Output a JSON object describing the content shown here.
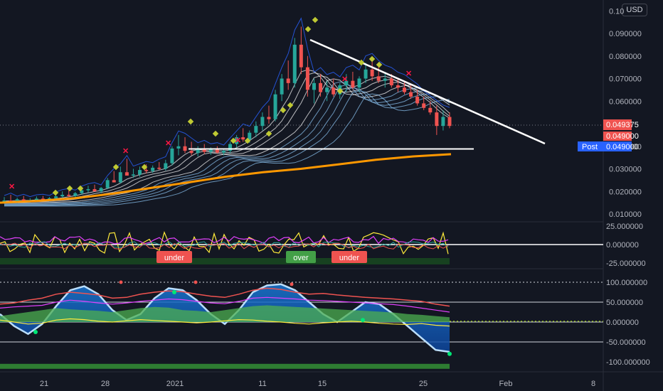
{
  "currency_button": "USD",
  "chart_data": [
    {
      "type": "candlestick",
      "panel": "price",
      "y_ticks": [
        "0.010000",
        "0.020000",
        "0.030000",
        "0.040000",
        "0.049000",
        "0.060000",
        "0.070000",
        "0.080000",
        "0.090000",
        "0.10"
      ],
      "ylim": [
        0.005,
        0.1
      ],
      "x_ticks": [
        "21",
        "28",
        "2021",
        "11",
        "15",
        "25",
        "Feb",
        "8"
      ],
      "price_badges": {
        "last": "0.049375",
        "close": "0.049000",
        "post_label": "Post",
        "post_value": "0.049000"
      },
      "colors": {
        "up": "#26a69a",
        "down": "#ef5350",
        "ma": "#ff9800",
        "trendline": "#ffffff",
        "band": "#2962ff"
      },
      "candles": [
        {
          "o": 0.0155,
          "h": 0.0175,
          "l": 0.0145,
          "c": 0.016
        },
        {
          "o": 0.016,
          "h": 0.0185,
          "l": 0.015,
          "c": 0.0158
        },
        {
          "o": 0.0158,
          "h": 0.0172,
          "l": 0.0148,
          "c": 0.0165
        },
        {
          "o": 0.0165,
          "h": 0.018,
          "l": 0.0155,
          "c": 0.0158
        },
        {
          "o": 0.0158,
          "h": 0.017,
          "l": 0.015,
          "c": 0.0162
        },
        {
          "o": 0.0162,
          "h": 0.0178,
          "l": 0.0155,
          "c": 0.0168
        },
        {
          "o": 0.0168,
          "h": 0.018,
          "l": 0.0158,
          "c": 0.0163
        },
        {
          "o": 0.0163,
          "h": 0.0175,
          "l": 0.0156,
          "c": 0.017
        },
        {
          "o": 0.017,
          "h": 0.019,
          "l": 0.0162,
          "c": 0.0178
        },
        {
          "o": 0.0178,
          "h": 0.02,
          "l": 0.017,
          "c": 0.0185
        },
        {
          "o": 0.0185,
          "h": 0.0205,
          "l": 0.0175,
          "c": 0.018
        },
        {
          "o": 0.018,
          "h": 0.0198,
          "l": 0.0172,
          "c": 0.0192
        },
        {
          "o": 0.0192,
          "h": 0.0215,
          "l": 0.0185,
          "c": 0.0205
        },
        {
          "o": 0.0205,
          "h": 0.0225,
          "l": 0.0195,
          "c": 0.021
        },
        {
          "o": 0.021,
          "h": 0.023,
          "l": 0.02,
          "c": 0.02
        },
        {
          "o": 0.02,
          "h": 0.022,
          "l": 0.0192,
          "c": 0.0215
        },
        {
          "o": 0.0215,
          "h": 0.026,
          "l": 0.021,
          "c": 0.025
        },
        {
          "o": 0.025,
          "h": 0.029,
          "l": 0.024,
          "c": 0.024
        },
        {
          "o": 0.024,
          "h": 0.031,
          "l": 0.0235,
          "c": 0.0285
        },
        {
          "o": 0.0285,
          "h": 0.0345,
          "l": 0.0275,
          "c": 0.027
        },
        {
          "o": 0.027,
          "h": 0.03,
          "l": 0.026,
          "c": 0.0275
        },
        {
          "o": 0.0275,
          "h": 0.031,
          "l": 0.0265,
          "c": 0.0295
        },
        {
          "o": 0.0295,
          "h": 0.032,
          "l": 0.028,
          "c": 0.029
        },
        {
          "o": 0.029,
          "h": 0.0315,
          "l": 0.0282,
          "c": 0.0305
        },
        {
          "o": 0.0305,
          "h": 0.033,
          "l": 0.0295,
          "c": 0.03
        },
        {
          "o": 0.03,
          "h": 0.034,
          "l": 0.0292,
          "c": 0.0325
        },
        {
          "o": 0.0325,
          "h": 0.04,
          "l": 0.0315,
          "c": 0.039
        },
        {
          "o": 0.039,
          "h": 0.045,
          "l": 0.036,
          "c": 0.04
        },
        {
          "o": 0.04,
          "h": 0.044,
          "l": 0.037,
          "c": 0.038
        },
        {
          "o": 0.038,
          "h": 0.042,
          "l": 0.036,
          "c": 0.037
        },
        {
          "o": 0.037,
          "h": 0.04,
          "l": 0.0355,
          "c": 0.039
        },
        {
          "o": 0.039,
          "h": 0.041,
          "l": 0.0365,
          "c": 0.0375
        },
        {
          "o": 0.0375,
          "h": 0.0395,
          "l": 0.0362,
          "c": 0.0385
        },
        {
          "o": 0.0385,
          "h": 0.04,
          "l": 0.0368,
          "c": 0.0372
        },
        {
          "o": 0.0372,
          "h": 0.039,
          "l": 0.036,
          "c": 0.038
        },
        {
          "o": 0.038,
          "h": 0.042,
          "l": 0.037,
          "c": 0.041
        },
        {
          "o": 0.041,
          "h": 0.045,
          "l": 0.0395,
          "c": 0.044
        },
        {
          "o": 0.044,
          "h": 0.048,
          "l": 0.042,
          "c": 0.043
        },
        {
          "o": 0.043,
          "h": 0.047,
          "l": 0.0415,
          "c": 0.046
        },
        {
          "o": 0.046,
          "h": 0.051,
          "l": 0.044,
          "c": 0.049
        },
        {
          "o": 0.049,
          "h": 0.055,
          "l": 0.047,
          "c": 0.053
        },
        {
          "o": 0.053,
          "h": 0.058,
          "l": 0.05,
          "c": 0.052
        },
        {
          "o": 0.052,
          "h": 0.065,
          "l": 0.051,
          "c": 0.063
        },
        {
          "o": 0.063,
          "h": 0.072,
          "l": 0.06,
          "c": 0.07
        },
        {
          "o": 0.07,
          "h": 0.078,
          "l": 0.065,
          "c": 0.068
        },
        {
          "o": 0.068,
          "h": 0.088,
          "l": 0.066,
          "c": 0.085
        },
        {
          "o": 0.085,
          "h": 0.093,
          "l": 0.072,
          "c": 0.075
        },
        {
          "o": 0.075,
          "h": 0.08,
          "l": 0.062,
          "c": 0.065
        },
        {
          "o": 0.065,
          "h": 0.07,
          "l": 0.059,
          "c": 0.068
        },
        {
          "o": 0.068,
          "h": 0.072,
          "l": 0.062,
          "c": 0.064
        },
        {
          "o": 0.064,
          "h": 0.069,
          "l": 0.06,
          "c": 0.066
        },
        {
          "o": 0.066,
          "h": 0.07,
          "l": 0.062,
          "c": 0.063
        },
        {
          "o": 0.063,
          "h": 0.068,
          "l": 0.061,
          "c": 0.067
        },
        {
          "o": 0.067,
          "h": 0.072,
          "l": 0.064,
          "c": 0.069
        },
        {
          "o": 0.069,
          "h": 0.073,
          "l": 0.065,
          "c": 0.066
        },
        {
          "o": 0.066,
          "h": 0.071,
          "l": 0.064,
          "c": 0.07
        },
        {
          "o": 0.07,
          "h": 0.077,
          "l": 0.068,
          "c": 0.074
        },
        {
          "o": 0.074,
          "h": 0.078,
          "l": 0.069,
          "c": 0.071
        },
        {
          "o": 0.071,
          "h": 0.075,
          "l": 0.068,
          "c": 0.069
        },
        {
          "o": 0.069,
          "h": 0.073,
          "l": 0.066,
          "c": 0.07
        },
        {
          "o": 0.07,
          "h": 0.072,
          "l": 0.066,
          "c": 0.067
        },
        {
          "o": 0.067,
          "h": 0.07,
          "l": 0.064,
          "c": 0.066
        },
        {
          "o": 0.066,
          "h": 0.069,
          "l": 0.063,
          "c": 0.064
        },
        {
          "o": 0.064,
          "h": 0.067,
          "l": 0.061,
          "c": 0.062
        },
        {
          "o": 0.062,
          "h": 0.065,
          "l": 0.058,
          "c": 0.059
        },
        {
          "o": 0.059,
          "h": 0.062,
          "l": 0.056,
          "c": 0.057
        },
        {
          "o": 0.057,
          "h": 0.06,
          "l": 0.054,
          "c": 0.055
        },
        {
          "o": 0.055,
          "h": 0.058,
          "l": 0.045,
          "c": 0.049
        },
        {
          "o": 0.049,
          "h": 0.056,
          "l": 0.047,
          "c": 0.053
        },
        {
          "o": 0.053,
          "h": 0.055,
          "l": 0.048,
          "c": 0.049
        }
      ],
      "moving_average": [
        0.015,
        0.0158,
        0.017,
        0.019,
        0.0215,
        0.024,
        0.0265,
        0.0285,
        0.03,
        0.032,
        0.034,
        0.0355,
        0.0365
      ],
      "support_level": 0.0385,
      "descending_trendline": {
        "start": 0.088,
        "end": 0.041
      },
      "time_span": [
        "2020-12-15",
        "2021-02-09"
      ]
    },
    {
      "type": "line",
      "panel": "oscillator-1",
      "y_ticks": [
        "25.000000",
        "0.000000",
        "-25.000000"
      ],
      "ylim": [
        -30,
        30
      ],
      "labels": [
        "under",
        "over",
        "under"
      ],
      "colors": {
        "series1": "#ffeb3b",
        "series2": "#e040fb",
        "series3": "#26a69a",
        "series4": "#ef5350",
        "zero_line": "#ffffff"
      }
    },
    {
      "type": "area",
      "panel": "oscillator-2",
      "y_ticks": [
        "100.000000",
        "50.000000",
        "0.000000",
        "-50.000000",
        "-100.000000"
      ],
      "ylim": [
        -120,
        120
      ],
      "colors": {
        "wave": "#1565c0",
        "green_area": "#4caf50",
        "red_line": "#ef5350",
        "yellow_line": "#ffeb3b",
        "purple_line": "#e040fb"
      }
    }
  ]
}
